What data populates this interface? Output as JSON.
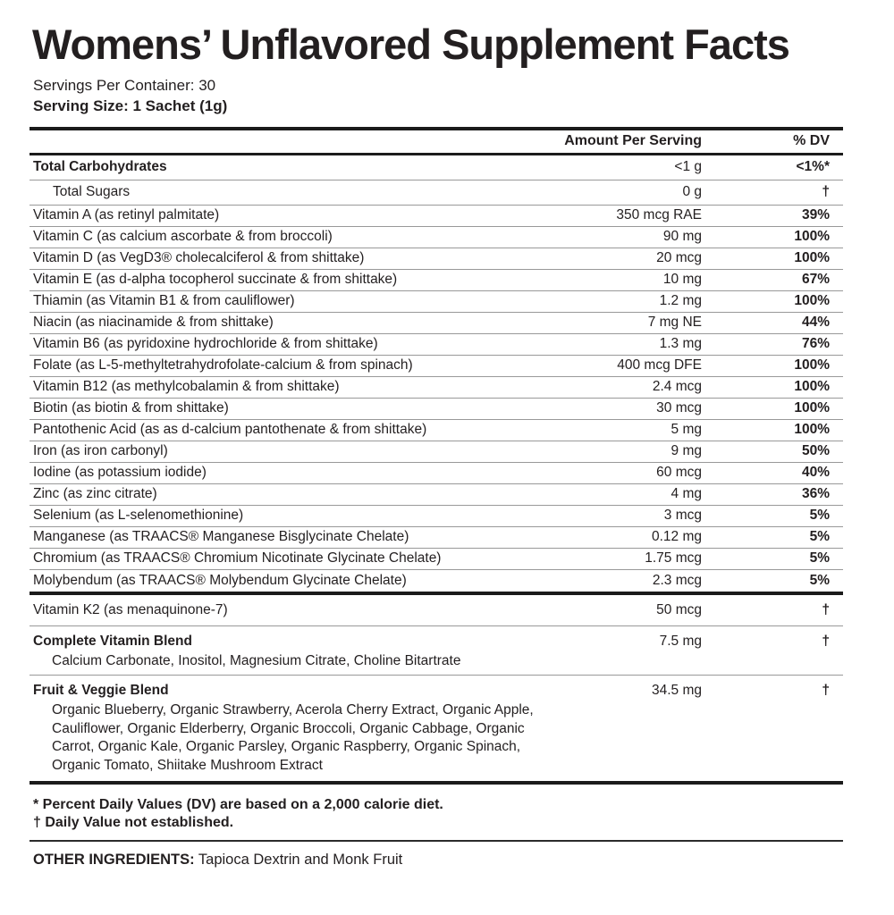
{
  "header": {
    "title": "Womens’ Unflavored Supplement Facts",
    "servings_per_container": "Servings Per Container: 30",
    "serving_size": "Serving Size: 1 Sachet (1g)"
  },
  "table": {
    "columns": {
      "amount": "Amount Per Serving",
      "dv": "% DV"
    },
    "main_rows": [
      {
        "label": "Total Carbohydrates",
        "amount": "<1 g",
        "dv": "<1%*",
        "bold": true
      },
      {
        "label": "Total Sugars",
        "amount": "0 g",
        "dv": "†",
        "indent": true
      },
      {
        "label": "Vitamin A (as retinyl palmitate)",
        "amount": "350 mcg RAE",
        "dv": "39%"
      },
      {
        "label": "Vitamin C (as calcium ascorbate & from broccoli)",
        "amount": "90 mg",
        "dv": "100%"
      },
      {
        "label": "Vitamin D (as VegD3® cholecalciferol & from shittake)",
        "amount": "20 mcg",
        "dv": "100%"
      },
      {
        "label": "Vitamin E (as d-alpha tocopherol succinate & from shittake)",
        "amount": "10 mg",
        "dv": "67%"
      },
      {
        "label": "Thiamin (as Vitamin B1 & from cauliflower)",
        "amount": "1.2 mg",
        "dv": "100%"
      },
      {
        "label": "Niacin (as niacinamide & from shittake)",
        "amount": "7 mg NE",
        "dv": "44%"
      },
      {
        "label": "Vitamin B6 (as pyridoxine hydrochloride & from shittake)",
        "amount": "1.3 mg",
        "dv": "76%"
      },
      {
        "label": "Folate (as L-5-methyltetrahydrofolate-calcium & from spinach)",
        "amount": "400 mcg DFE",
        "dv": "100%"
      },
      {
        "label": "Vitamin B12 (as methylcobalamin & from shittake)",
        "amount": "2.4 mcg",
        "dv": "100%"
      },
      {
        "label": "Biotin (as biotin & from shittake)",
        "amount": "30 mcg",
        "dv": "100%"
      },
      {
        "label": "Pantothenic Acid (as as d-calcium pantothenate & from shittake)",
        "amount": "5 mg",
        "dv": "100%"
      },
      {
        "label": "Iron (as iron carbonyl)",
        "amount": "9 mg",
        "dv": "50%"
      },
      {
        "label": "Iodine (as potassium iodide)",
        "amount": "60 mcg",
        "dv": "40%"
      },
      {
        "label": "Zinc (as zinc citrate)",
        "amount": "4 mg",
        "dv": "36%"
      },
      {
        "label": "Selenium (as L-selenomethionine)",
        "amount": "3 mcg",
        "dv": "5%"
      },
      {
        "label": "Manganese (as TRAACS® Manganese Bisglycinate Chelate)",
        "amount": "0.12 mg",
        "dv": "5%"
      },
      {
        "label": "Chromium (as TRAACS® Chromium Nicotinate Glycinate Chelate)",
        "amount": "1.75 mcg",
        "dv": "5%"
      },
      {
        "label": "Molybendum (as TRAACS® Molybendum Glycinate Chelate)",
        "amount": "2.3 mcg",
        "dv": "5%"
      }
    ],
    "secondary_rows": [
      {
        "label": "Vitamin K2 (as menaquinone-7)",
        "amount": "50 mcg",
        "dv": "†"
      },
      {
        "label": "Complete Vitamin Blend",
        "amount": "7.5 mg",
        "dv": "†",
        "bold": true,
        "sub": "Calcium Carbonate, Inositol, Magnesium Citrate, Choline Bitartrate"
      },
      {
        "label": "Fruit & Veggie Blend",
        "amount": "34.5 mg",
        "dv": "†",
        "bold": true,
        "sub": "Organic Blueberry, Organic Strawberry, Acerola Cherry Extract, Organic Apple, Cauliflower, Organic Elderberry, Organic Broccoli, Organic Cabbage, Organic Carrot, Organic Kale, Organic Parsley, Organic Raspberry, Organic Spinach, Organic Tomato, Shiitake Mushroom Extract"
      }
    ],
    "footnotes": [
      "* Percent Daily Values (DV) are based on a 2,000 calorie diet.",
      "† Daily Value not established."
    ],
    "other_ingredients": {
      "label": "OTHER INGREDIENTS:",
      "value": "Tapioca Dextrin and Monk Fruit"
    }
  },
  "colors": {
    "text": "#231f20",
    "rule": "#1b1b1b",
    "separator": "#999999",
    "background": "#ffffff"
  }
}
